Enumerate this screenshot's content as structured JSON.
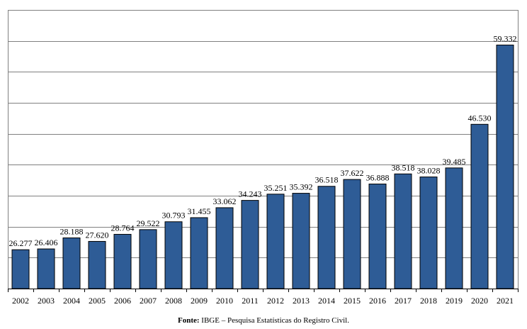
{
  "chart_data": {
    "type": "bar",
    "title": "",
    "xlabel": "",
    "ylabel": "",
    "categories": [
      "2002",
      "2003",
      "2004",
      "2005",
      "2006",
      "2007",
      "2008",
      "2009",
      "2010",
      "2011",
      "2012",
      "2013",
      "2014",
      "2015",
      "2016",
      "2017",
      "2018",
      "2019",
      "2020",
      "2021"
    ],
    "values": [
      26277,
      26406,
      28188,
      27620,
      28764,
      29522,
      30793,
      31455,
      33062,
      34243,
      35251,
      35392,
      36518,
      37622,
      36888,
      38518,
      38028,
      39485,
      46530,
      59332
    ],
    "data_labels": [
      "26.277",
      "26.406",
      "28.188",
      "27.620",
      "28.764",
      "29.522",
      "30.793",
      "31.455",
      "33.062",
      "34.243",
      "35.251",
      "35.392",
      "36.518",
      "37.622",
      "36.888",
      "38.518",
      "38.028",
      "39.485",
      "46.530",
      "59.332"
    ],
    "ylim": [
      20000,
      65000
    ],
    "gridlines": [
      20000,
      25000,
      30000,
      35000,
      40000,
      45000,
      50000,
      55000,
      60000,
      65000
    ],
    "grid": true,
    "bar_color": "#2E5C96",
    "legend": "none"
  },
  "source": {
    "label": "Fonte:",
    "text": " IBGE – Pesquisa Estatísticas do Registro Civil."
  }
}
